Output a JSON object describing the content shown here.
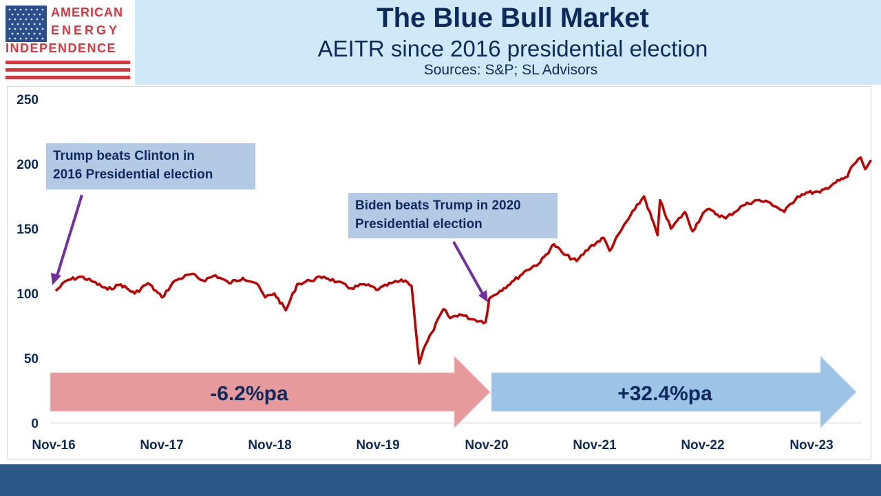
{
  "logo": {
    "words": [
      "AMERICAN",
      "ENERGY",
      "INDEPENDENCE"
    ],
    "stripe_color": "#d9363e",
    "field_color": "#2b4f8c"
  },
  "header": {
    "title": "The Blue Bull Market",
    "subtitle": "AEITR since 2016 presidential election",
    "sources": "Sources: S&P; SL Advisors"
  },
  "annotations": {
    "note1": {
      "line1": "Trump beats Clinton in",
      "line2": "2016 Presidential election"
    },
    "note2": {
      "line1": "Biden beats Trump in 2020",
      "line2": "Presidential election"
    },
    "arrow1_label": "-6.2%pa",
    "arrow2_label": "+32.4%pa"
  },
  "colors": {
    "line": "#c00000",
    "pointer": "#7030a0",
    "arrow1": "#e69a9b",
    "arrow2": "#9dc3e6",
    "text": "#0e2a5c"
  },
  "chart_data": {
    "type": "line",
    "title": "The Blue Bull Market",
    "ylim": [
      0,
      250
    ],
    "yticks": [
      "0",
      "50",
      "100",
      "150",
      "200",
      "250"
    ],
    "xticks": [
      "Nov-16",
      "Nov-17",
      "Nov-18",
      "Nov-19",
      "Nov-20",
      "Nov-21",
      "Nov-22",
      "Nov-23"
    ],
    "series": [
      {
        "x": [
          "2016-11-08",
          "2016-12-15",
          "2017-02-01",
          "2017-03-15",
          "2017-05-01",
          "2017-06-15",
          "2017-08-01",
          "2017-09-15",
          "2017-11-01",
          "2017-12-15",
          "2018-02-08",
          "2018-03-20",
          "2018-05-01",
          "2018-06-15",
          "2018-08-01",
          "2018-09-15",
          "2018-10-15",
          "2018-11-15",
          "2018-12-24",
          "2019-01-31",
          "2019-03-15",
          "2019-05-01",
          "2019-06-15",
          "2019-08-01",
          "2019-09-15",
          "2019-11-01",
          "2019-12-15",
          "2020-01-31",
          "2020-02-21",
          "2020-03-18",
          "2020-03-31",
          "2020-04-30",
          "2020-06-08",
          "2020-06-30",
          "2020-08-01",
          "2020-09-15",
          "2020-10-28",
          "2020-11-09",
          "2020-12-15",
          "2021-01-31",
          "2021-03-15",
          "2021-04-30",
          "2021-06-15",
          "2021-07-20",
          "2021-08-31",
          "2021-10-15",
          "2021-11-30",
          "2021-12-20",
          "2022-01-31",
          "2022-03-15",
          "2022-04-15",
          "2022-05-31",
          "2022-06-08",
          "2022-07-15",
          "2022-08-31",
          "2022-09-26",
          "2022-10-31",
          "2022-11-15",
          "2023-01-15",
          "2023-03-15",
          "2023-05-01",
          "2023-06-15",
          "2023-08-01",
          "2023-09-15",
          "2023-10-15",
          "2023-11-30",
          "2024-01-15",
          "2024-03-01",
          "2024-03-15",
          "2024-04-15",
          "2024-04-30",
          "2024-05-20"
        ],
        "values": [
          102,
          110,
          113,
          109,
          103,
          107,
          100,
          108,
          97,
          110,
          115,
          110,
          114,
          108,
          112,
          108,
          97,
          100,
          87,
          107,
          110,
          113,
          109,
          104,
          107,
          103,
          108,
          110,
          106,
          46,
          56,
          70,
          88,
          81,
          84,
          80,
          78,
          96,
          102,
          110,
          118,
          124,
          138,
          130,
          125,
          136,
          143,
          133,
          150,
          165,
          175,
          145,
          172,
          150,
          163,
          148,
          162,
          165,
          158,
          168,
          172,
          170,
          163,
          175,
          178,
          178,
          185,
          190,
          198,
          205,
          196,
          203
        ]
      }
    ]
  }
}
